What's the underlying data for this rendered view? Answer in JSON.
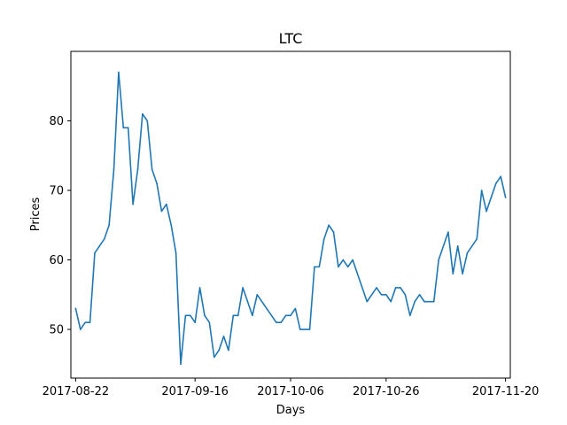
{
  "chart_data": {
    "type": "line",
    "title": "LTC",
    "xlabel": "Days",
    "ylabel": "Prices",
    "grid": false,
    "legend": "none",
    "line_color": "#1f77b4",
    "xlim": [
      "2017-08-21",
      "2017-11-21"
    ],
    "ylim": [
      43,
      90
    ],
    "x_ticks": [
      "2017-08-22",
      "2017-09-16",
      "2017-10-06",
      "2017-10-26",
      "2017-11-20"
    ],
    "y_ticks": [
      50,
      60,
      70,
      80
    ],
    "series": [
      {
        "name": "",
        "points": [
          [
            "2017-08-22",
            53
          ],
          [
            "2017-08-23",
            50
          ],
          [
            "2017-08-24",
            51
          ],
          [
            "2017-08-25",
            51
          ],
          [
            "2017-08-26",
            61
          ],
          [
            "2017-08-27",
            62
          ],
          [
            "2017-08-28",
            63
          ],
          [
            "2017-08-29",
            65
          ],
          [
            "2017-08-30",
            73
          ],
          [
            "2017-08-31",
            87
          ],
          [
            "2017-09-01",
            79
          ],
          [
            "2017-09-02",
            79
          ],
          [
            "2017-09-03",
            68
          ],
          [
            "2017-09-04",
            73
          ],
          [
            "2017-09-05",
            81
          ],
          [
            "2017-09-06",
            80
          ],
          [
            "2017-09-07",
            73
          ],
          [
            "2017-09-08",
            71
          ],
          [
            "2017-09-09",
            67
          ],
          [
            "2017-09-10",
            68
          ],
          [
            "2017-09-11",
            65
          ],
          [
            "2017-09-12",
            61
          ],
          [
            "2017-09-13",
            45
          ],
          [
            "2017-09-14",
            52
          ],
          [
            "2017-09-15",
            52
          ],
          [
            "2017-09-16",
            51
          ],
          [
            "2017-09-17",
            56
          ],
          [
            "2017-09-18",
            52
          ],
          [
            "2017-09-19",
            51
          ],
          [
            "2017-09-20",
            46
          ],
          [
            "2017-09-21",
            47
          ],
          [
            "2017-09-22",
            49
          ],
          [
            "2017-09-23",
            47
          ],
          [
            "2017-09-24",
            52
          ],
          [
            "2017-09-25",
            52
          ],
          [
            "2017-09-26",
            56
          ],
          [
            "2017-09-27",
            54
          ],
          [
            "2017-09-28",
            52
          ],
          [
            "2017-09-29",
            55
          ],
          [
            "2017-10-03",
            51
          ],
          [
            "2017-10-04",
            51
          ],
          [
            "2017-10-05",
            52
          ],
          [
            "2017-10-06",
            52
          ],
          [
            "2017-10-07",
            53
          ],
          [
            "2017-10-08",
            50
          ],
          [
            "2017-10-10",
            50
          ],
          [
            "2017-10-11",
            59
          ],
          [
            "2017-10-12",
            59
          ],
          [
            "2017-10-13",
            63
          ],
          [
            "2017-10-14",
            65
          ],
          [
            "2017-10-15",
            64
          ],
          [
            "2017-10-16",
            59
          ],
          [
            "2017-10-17",
            60
          ],
          [
            "2017-10-18",
            59
          ],
          [
            "2017-10-19",
            60
          ],
          [
            "2017-10-22",
            54
          ],
          [
            "2017-10-23",
            55
          ],
          [
            "2017-10-24",
            56
          ],
          [
            "2017-10-25",
            55
          ],
          [
            "2017-10-26",
            55
          ],
          [
            "2017-10-27",
            54
          ],
          [
            "2017-10-28",
            56
          ],
          [
            "2017-10-29",
            56
          ],
          [
            "2017-10-30",
            55
          ],
          [
            "2017-10-31",
            52
          ],
          [
            "2017-11-01",
            54
          ],
          [
            "2017-11-02",
            55
          ],
          [
            "2017-11-03",
            54
          ],
          [
            "2017-11-04",
            54
          ],
          [
            "2017-11-05",
            54
          ],
          [
            "2017-11-06",
            60
          ],
          [
            "2017-11-08",
            64
          ],
          [
            "2017-11-09",
            58
          ],
          [
            "2017-11-10",
            62
          ],
          [
            "2017-11-11",
            58
          ],
          [
            "2017-11-12",
            61
          ],
          [
            "2017-11-14",
            63
          ],
          [
            "2017-11-15",
            70
          ],
          [
            "2017-11-16",
            67
          ],
          [
            "2017-11-17",
            69
          ],
          [
            "2017-11-18",
            71
          ],
          [
            "2017-11-19",
            72
          ],
          [
            "2017-11-20",
            69
          ]
        ]
      }
    ]
  }
}
